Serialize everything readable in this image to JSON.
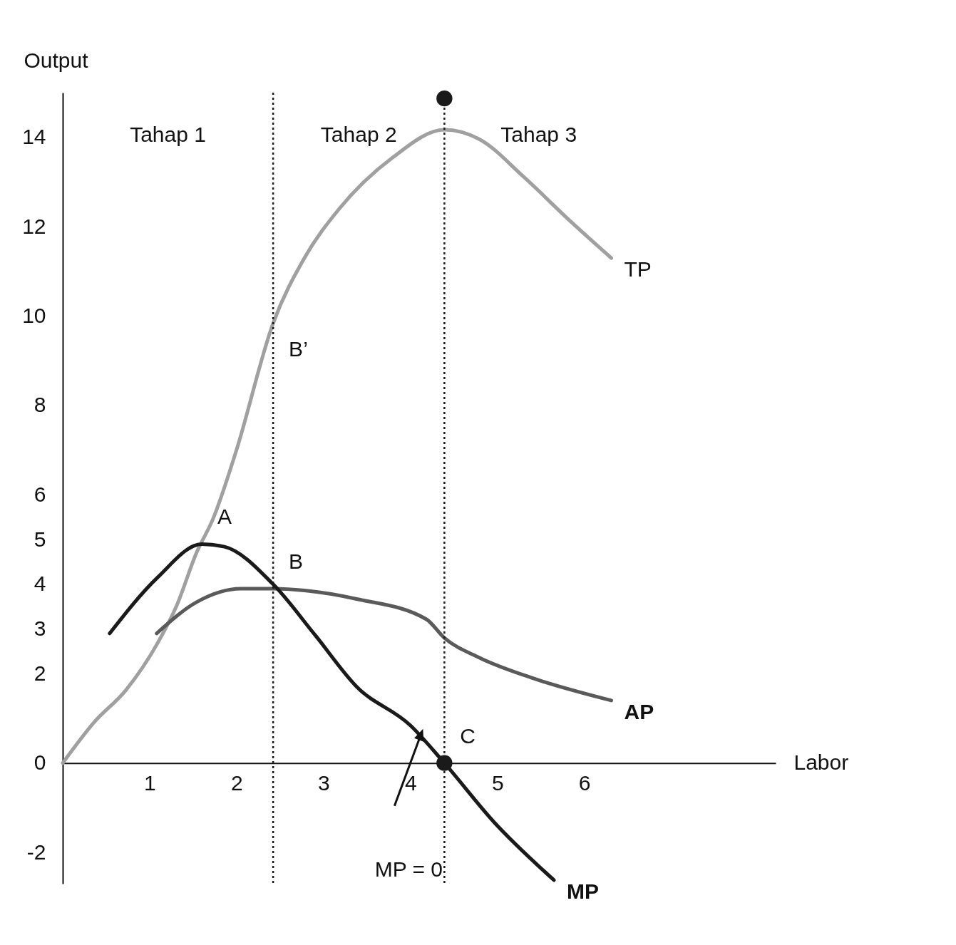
{
  "chart_data": {
    "type": "line",
    "xlabel": "Labor",
    "ylabel": "Output",
    "xlim": [
      0,
      8.2
    ],
    "ylim": [
      -2.7,
      15
    ],
    "xticks": [
      1,
      2,
      3,
      4,
      5,
      6
    ],
    "yticks": [
      -2,
      0,
      2,
      3,
      4,
      5,
      6,
      8,
      10,
      12,
      14
    ],
    "grid": false,
    "marker": "none",
    "line_style": "solid",
    "series": [
      {
        "name": "TP",
        "color": "#a0a0a0",
        "x": [
          0,
          0.36,
          0.73,
          1.09,
          1.31,
          1.54,
          1.73,
          1.99,
          2.42,
          2.78,
          3.18,
          3.79,
          4.39,
          4.79,
          5.3,
          5.83,
          6.31
        ],
        "values": [
          0,
          0.91,
          1.64,
          2.68,
          3.52,
          4.71,
          5.47,
          6.95,
          9.84,
          11.3,
          12.4,
          13.54,
          14.17,
          13.96,
          13.12,
          12.14,
          11.3
        ]
      },
      {
        "name": "AP",
        "color": "#5a5a5a",
        "x": [
          1.08,
          1.54,
          2.05,
          2.42,
          2.78,
          3.38,
          4.18,
          4.39,
          4.79,
          5.39,
          6.31
        ],
        "values": [
          2.9,
          3.6,
          3.9,
          3.9,
          3.86,
          3.67,
          3.22,
          2.8,
          2.36,
          1.91,
          1.4
        ]
      },
      {
        "name": "MP",
        "color": "#1a1a1a",
        "x": [
          0.54,
          1.09,
          1.6,
          1.86,
          2.42,
          2.9,
          3.38,
          4.0,
          4.39,
          4.96,
          5.65
        ],
        "values": [
          2.9,
          4.15,
          4.9,
          4.84,
          4.0,
          2.87,
          1.71,
          0.84,
          0,
          -1.32,
          -2.62
        ]
      },
      {
        "type": "scatter",
        "marker": "circle",
        "color": "#1a1a1a",
        "x": [
          4.39,
          4.39
        ],
        "values": [
          0,
          14.87
        ]
      }
    ],
    "ref_lines": [
      {
        "axis": "x",
        "value": 2.42,
        "color": "#1a1a1a",
        "line_style": "dotted"
      },
      {
        "axis": "x",
        "value": 4.39,
        "color": "#1a1a1a",
        "line_style": "dotted"
      }
    ],
    "annotations": [
      "Tahap 1",
      "Tahap 2",
      "Tahap 3",
      {
        "text": "A",
        "x": 1.6,
        "y": 4.9
      },
      {
        "text": "B",
        "x": 2.42,
        "y": 3.9
      },
      {
        "text": "B’",
        "x": 2.42,
        "y": 9.84
      },
      {
        "text": "C",
        "x": 4.39,
        "y": 0
      },
      "MP = 0"
    ]
  }
}
